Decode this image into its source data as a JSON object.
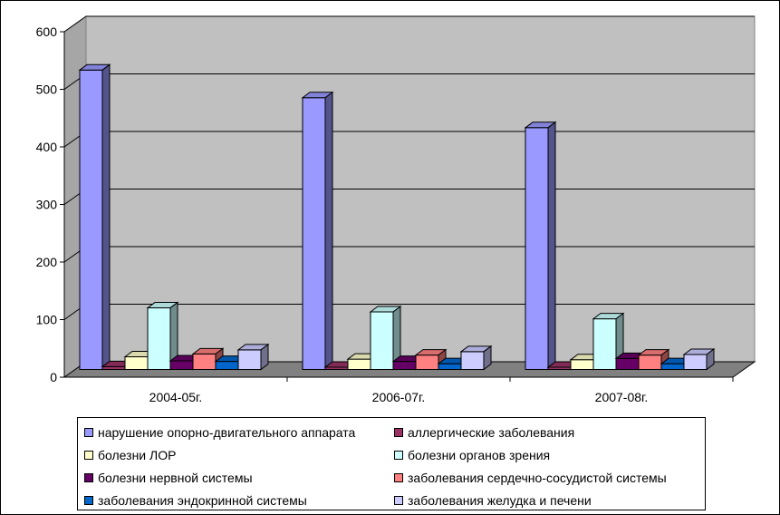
{
  "chart_data": {
    "type": "bar",
    "categories": [
      "2004-05г.",
      "2006-07г.",
      "2007-08г."
    ],
    "ylim": [
      0,
      600
    ],
    "yticks": [
      "0",
      "100",
      "200",
      "300",
      "400",
      "500",
      "600"
    ],
    "grid": true,
    "legend_position": "bottom",
    "series": [
      {
        "name": "нарушение опорно-двигательного аппарата",
        "color": "#9999ff",
        "values": [
          520,
          472,
          420
        ]
      },
      {
        "name": "аллергические заболевания",
        "color": "#993366",
        "values": [
          5,
          4,
          4
        ]
      },
      {
        "name": "болезни ЛОР",
        "color": "#ffffcc",
        "values": [
          22,
          18,
          17
        ]
      },
      {
        "name": "болезни органов зрения",
        "color": "#ccffff",
        "values": [
          107,
          100,
          88
        ]
      },
      {
        "name": "болезни нервной системы",
        "color": "#660066",
        "values": [
          15,
          14,
          19
        ]
      },
      {
        "name": "заболевания сердечно-сосудистой системы",
        "color": "#ff8080",
        "values": [
          27,
          25,
          25
        ]
      },
      {
        "name": "заболевания эндокринной системы",
        "color": "#0066cc",
        "values": [
          14,
          10,
          10
        ]
      },
      {
        "name": "заболевания желудка и печени",
        "color": "#ccccff",
        "values": [
          34,
          31,
          26
        ]
      }
    ]
  }
}
